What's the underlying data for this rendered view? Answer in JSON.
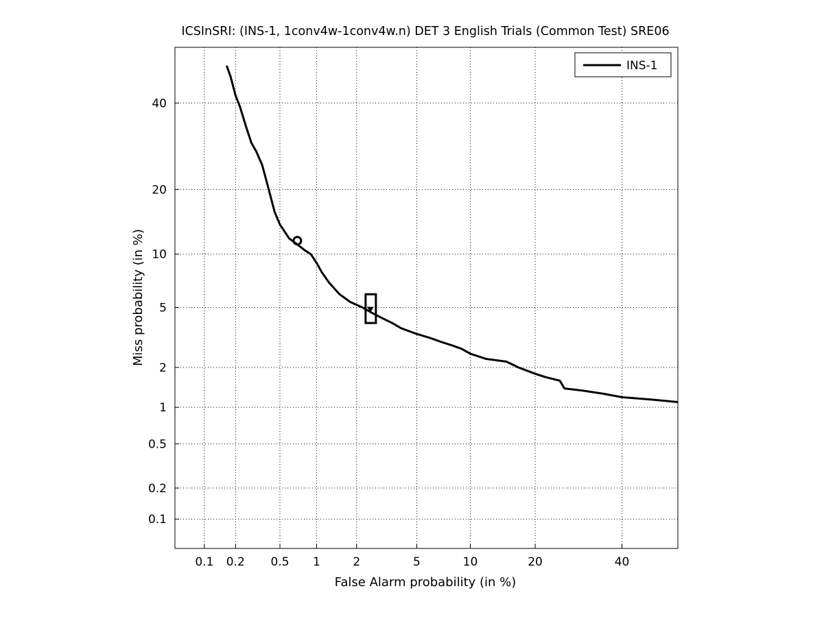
{
  "chart_data": {
    "type": "line",
    "title": "ICSInSRI: (INS-1, 1conv4w-1conv4w.n) DET 3 English Trials (Common Test) SRE06",
    "xlabel": "False Alarm probability (in %)",
    "ylabel": "Miss probability (in %)",
    "x_scale": "normal-deviate (probit)",
    "y_scale": "normal-deviate (probit)",
    "xlim": [
      0.05,
      55
    ],
    "ylim": [
      0.05,
      55
    ],
    "x_ticks": [
      0.1,
      0.2,
      0.5,
      1,
      2,
      5,
      10,
      20,
      40
    ],
    "x_tick_labels": [
      "0.1",
      "0.2",
      "0.5",
      "1",
      "2",
      "5",
      "10",
      "20",
      "40"
    ],
    "y_ticks": [
      0.1,
      0.2,
      0.5,
      1,
      2,
      5,
      10,
      20,
      40
    ],
    "y_tick_labels": [
      "0.1",
      "0.2",
      "0.5",
      "1",
      "2",
      "5",
      "10",
      "20",
      "40"
    ],
    "grid": true,
    "legend_position": "top-right",
    "line_color": "#000000",
    "series": [
      {
        "name": "INS-1",
        "x": [
          0.165,
          0.18,
          0.2,
          0.22,
          0.25,
          0.28,
          0.31,
          0.35,
          0.4,
          0.45,
          0.5,
          0.6,
          0.7,
          0.8,
          0.9,
          1.0,
          1.1,
          1.25,
          1.5,
          1.8,
          2.2,
          2.6,
          3.0,
          3.5,
          4.0,
          5.0,
          6.0,
          7.0,
          8.0,
          9.0,
          10.0,
          12.0,
          15.0,
          17.0,
          20.0,
          22.0,
          25.0,
          26.0,
          30.0,
          35.0,
          40.0,
          48.0,
          55.0
        ],
        "y": [
          50.0,
          47.0,
          42.0,
          39.0,
          34.0,
          30.0,
          28.0,
          25.0,
          20.0,
          16.0,
          14.0,
          12.0,
          11.2,
          10.5,
          10.0,
          9.0,
          8.0,
          7.0,
          6.0,
          5.4,
          5.0,
          4.6,
          4.3,
          4.0,
          3.7,
          3.4,
          3.2,
          3.0,
          2.85,
          2.7,
          2.5,
          2.3,
          2.2,
          2.0,
          1.8,
          1.7,
          1.6,
          1.4,
          1.35,
          1.28,
          1.2,
          1.15,
          1.1
        ]
      }
    ],
    "annotations": [
      {
        "kind": "circle-marker",
        "x": 0.7,
        "y": 11.7
      },
      {
        "kind": "confidence-box-marker",
        "x": 2.5,
        "y": 4.9,
        "y_low": 4.0,
        "y_high": 6.0
      }
    ]
  }
}
